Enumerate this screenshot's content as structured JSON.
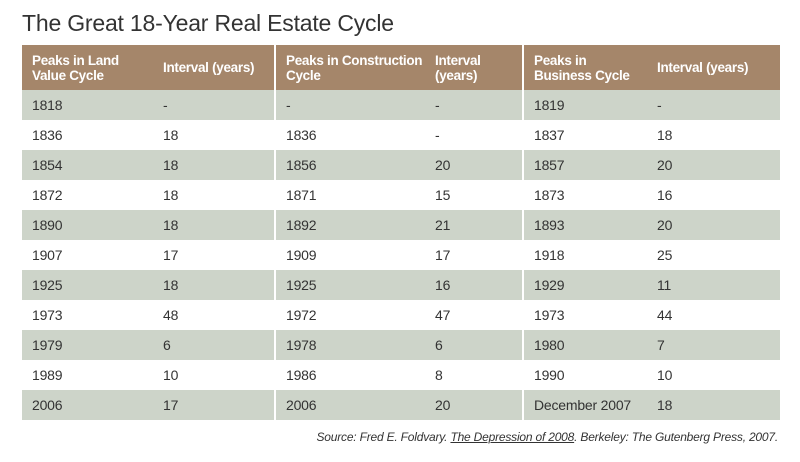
{
  "title": "The Great 18-Year Real Estate Cycle",
  "colors": {
    "header_bg": "#a5866a",
    "band_green": "#cdd4c9",
    "text": "#333333"
  },
  "table": {
    "headers": [
      "Peaks in Land Value Cycle",
      "Interval (years)",
      "Peaks in Construction Cycle",
      "Interval (years)",
      "Peaks in Business Cycle",
      "Interval (years)"
    ],
    "rows": [
      [
        "1818",
        "-",
        "-",
        "-",
        "1819",
        "-"
      ],
      [
        "1836",
        "18",
        "1836",
        "-",
        "1837",
        "18"
      ],
      [
        "1854",
        "18",
        "1856",
        "20",
        "1857",
        "20"
      ],
      [
        "1872",
        "18",
        "1871",
        "15",
        "1873",
        "16"
      ],
      [
        "1890",
        "18",
        "1892",
        "21",
        "1893",
        "20"
      ],
      [
        "1907",
        "17",
        "1909",
        "17",
        "1918",
        "25"
      ],
      [
        "1925",
        "18",
        "1925",
        "16",
        "1929",
        "11"
      ],
      [
        "1973",
        "48",
        "1972",
        "47",
        "1973",
        "44"
      ],
      [
        "1979",
        "6",
        "1978",
        "6",
        "1980",
        "7"
      ],
      [
        "1989",
        "10",
        "1986",
        "8",
        "1990",
        "10"
      ],
      [
        "2006",
        "17",
        "2006",
        "20",
        "December 2007",
        "18"
      ]
    ]
  },
  "source": {
    "prefix": "Source: Fred E. Foldvary. ",
    "book": "The Depression of 2008",
    "suffix": ". Berkeley: The Gutenberg Press, 2007."
  }
}
